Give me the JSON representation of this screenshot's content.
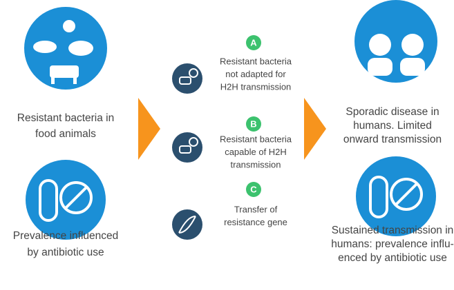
{
  "left": [
    {
      "lines": [
        "Resistant bacteria in",
        "food animals"
      ]
    },
    {
      "lines": [
        "Prevalence influenced",
        "by antibiotic use"
      ]
    }
  ],
  "middle": [
    {
      "badge": "A",
      "lines": [
        "Resistant bacteria",
        "not adapted for",
        "H2H transmission"
      ]
    },
    {
      "badge": "B",
      "lines": [
        "Resistant bacteria",
        "capable of H2H",
        "transmission"
      ]
    },
    {
      "badge": "C",
      "lines": [
        "Transfer of",
        "resistance gene"
      ]
    }
  ],
  "right": [
    {
      "lines": [
        "Sporadic disease in",
        "humans. Limited",
        "onward transmission"
      ]
    },
    {
      "lines": [
        "Sustained transmission in",
        "humans: prevalence influ-",
        "enced by antibiotic use"
      ]
    }
  ]
}
